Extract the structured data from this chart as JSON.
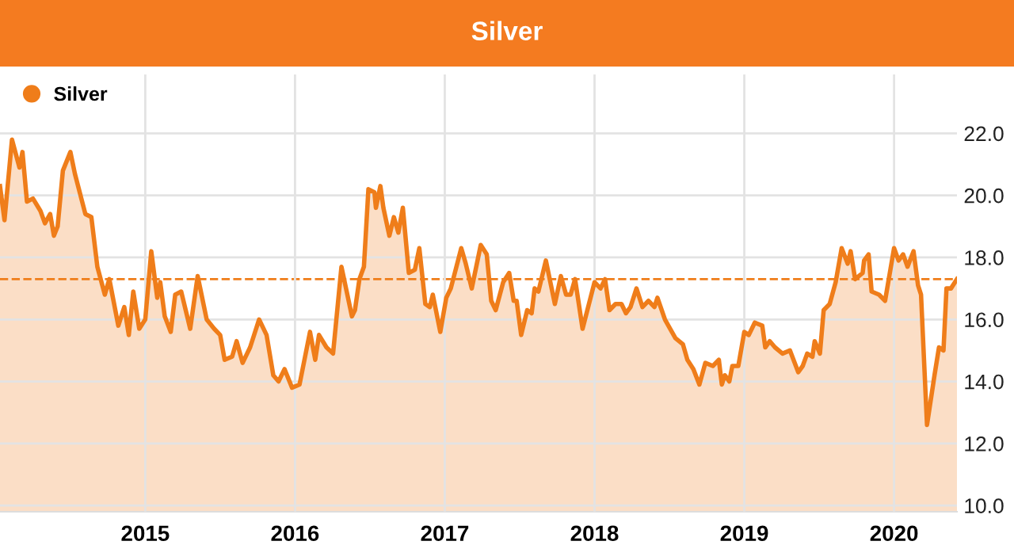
{
  "chart_data": {
    "type": "area",
    "title": "Silver",
    "legend": "top left",
    "grid": true,
    "marker": "none",
    "line_style": "solid",
    "xlim": [
      2014.03,
      2020.42
    ],
    "xticks": [
      2015,
      2016,
      2017,
      2018,
      2019,
      2020
    ],
    "ylim": [
      9.8,
      23.9
    ],
    "yticks": [
      {
        "value": 10,
        "label": "10.0"
      },
      {
        "value": 12,
        "label": "12.0"
      },
      {
        "value": 14,
        "label": "14.0"
      },
      {
        "value": 16,
        "label": "16.0"
      },
      {
        "value": 18,
        "label": "18.0"
      },
      {
        "value": 20,
        "label": "20.0"
      },
      {
        "value": 22,
        "label": "22.0"
      }
    ],
    "ref_lines": [
      {
        "axis": "y",
        "value": 17.3,
        "label": null,
        "color": "#ef7d1a",
        "line_style": "dashed"
      }
    ],
    "series": [
      {
        "name": "Silver",
        "color": "#ef7d1a",
        "x": [
          2014.03,
          2014.06,
          2014.11,
          2014.16,
          2014.18,
          2014.21,
          2014.25,
          2014.3,
          2014.33,
          2014.365,
          2014.39,
          2014.415,
          2014.45,
          2014.5,
          2014.53,
          2014.6,
          2014.64,
          2014.68,
          2014.73,
          2014.76,
          2014.82,
          2014.86,
          2014.89,
          2014.92,
          2014.96,
          2015.0,
          2015.04,
          2015.08,
          2015.1,
          2015.13,
          2015.17,
          2015.2,
          2015.24,
          2015.3,
          2015.35,
          2015.41,
          2015.46,
          2015.5,
          2015.53,
          2015.58,
          2015.61,
          2015.65,
          2015.7,
          2015.76,
          2015.81,
          2015.855,
          2015.89,
          2015.93,
          2015.98,
          2016.03,
          2016.1,
          2016.135,
          2016.16,
          2016.21,
          2016.254,
          2016.31,
          2016.38,
          2016.4,
          2016.43,
          2016.46,
          2016.49,
          2016.53,
          2016.54,
          2016.57,
          2016.59,
          2016.63,
          2016.66,
          2016.69,
          2016.72,
          2016.76,
          2016.8,
          2016.83,
          2016.87,
          2016.9,
          2016.92,
          2016.97,
          2017.01,
          2017.04,
          2017.11,
          2017.14,
          2017.18,
          2017.24,
          2017.28,
          2017.31,
          2017.34,
          2017.39,
          2017.43,
          2017.46,
          2017.48,
          2017.51,
          2017.55,
          2017.58,
          2017.6,
          2017.625,
          2017.675,
          2017.735,
          2017.775,
          2017.81,
          2017.84,
          2017.87,
          2017.92,
          2018.0,
          2018.04,
          2018.07,
          2018.1,
          2018.14,
          2018.18,
          2018.21,
          2018.24,
          2018.28,
          2018.32,
          2018.36,
          2018.4,
          2018.42,
          2018.47,
          2018.54,
          2018.59,
          2018.62,
          2018.66,
          2018.7,
          2018.74,
          2018.79,
          2018.83,
          2018.85,
          2018.87,
          2018.9,
          2018.92,
          2018.96,
          2019.0,
          2019.03,
          2019.07,
          2019.12,
          2019.14,
          2019.17,
          2019.205,
          2019.255,
          2019.305,
          2019.36,
          2019.39,
          2019.42,
          2019.455,
          2019.47,
          2019.505,
          2019.53,
          2019.57,
          2019.61,
          2019.65,
          2019.69,
          2019.71,
          2019.74,
          2019.79,
          2019.8,
          2019.83,
          2019.85,
          2019.9,
          2019.94,
          2020.0,
          2020.03,
          2020.06,
          2020.09,
          2020.13,
          2020.16,
          2020.18,
          2020.22,
          2020.27,
          2020.3,
          2020.33,
          2020.35,
          2020.38,
          2020.42
        ],
        "values": [
          20.3,
          19.2,
          21.8,
          20.9,
          21.4,
          19.8,
          19.9,
          19.5,
          19.1,
          19.4,
          18.7,
          19.0,
          20.8,
          21.4,
          20.7,
          19.4,
          19.3,
          17.7,
          16.8,
          17.3,
          15.8,
          16.4,
          15.5,
          16.9,
          15.7,
          16.0,
          18.2,
          16.7,
          17.2,
          16.1,
          15.6,
          16.8,
          16.9,
          15.7,
          17.4,
          16.0,
          15.7,
          15.5,
          14.7,
          14.8,
          15.3,
          14.6,
          15.1,
          16.0,
          15.5,
          14.2,
          14.0,
          14.4,
          13.8,
          13.9,
          15.6,
          14.7,
          15.5,
          15.1,
          14.9,
          17.7,
          16.1,
          16.3,
          17.3,
          17.7,
          20.2,
          20.1,
          19.6,
          20.3,
          19.6,
          18.7,
          19.3,
          18.8,
          19.6,
          17.5,
          17.6,
          18.3,
          16.5,
          16.4,
          16.8,
          15.6,
          16.7,
          17.0,
          18.3,
          17.8,
          17.0,
          18.4,
          18.1,
          16.6,
          16.3,
          17.2,
          17.5,
          16.6,
          16.6,
          15.5,
          16.3,
          16.2,
          17.0,
          16.9,
          17.9,
          16.5,
          17.4,
          16.8,
          16.8,
          17.3,
          15.7,
          17.2,
          17.0,
          17.3,
          16.3,
          16.5,
          16.5,
          16.2,
          16.4,
          17.0,
          16.4,
          16.6,
          16.4,
          16.7,
          16.0,
          15.4,
          15.2,
          14.7,
          14.4,
          13.9,
          14.6,
          14.5,
          14.7,
          13.9,
          14.2,
          14.0,
          14.5,
          14.5,
          15.6,
          15.5,
          15.9,
          15.8,
          15.1,
          15.3,
          15.1,
          14.9,
          15.0,
          14.3,
          14.5,
          14.9,
          14.8,
          15.3,
          14.9,
          16.3,
          16.5,
          17.2,
          18.3,
          17.8,
          18.2,
          17.3,
          17.5,
          17.9,
          18.1,
          16.9,
          16.8,
          16.6,
          18.3,
          17.9,
          18.1,
          17.7,
          18.2,
          17.1,
          16.8,
          12.6,
          14.2,
          15.1,
          15.0,
          17.0,
          17.0,
          17.3
        ]
      }
    ]
  }
}
